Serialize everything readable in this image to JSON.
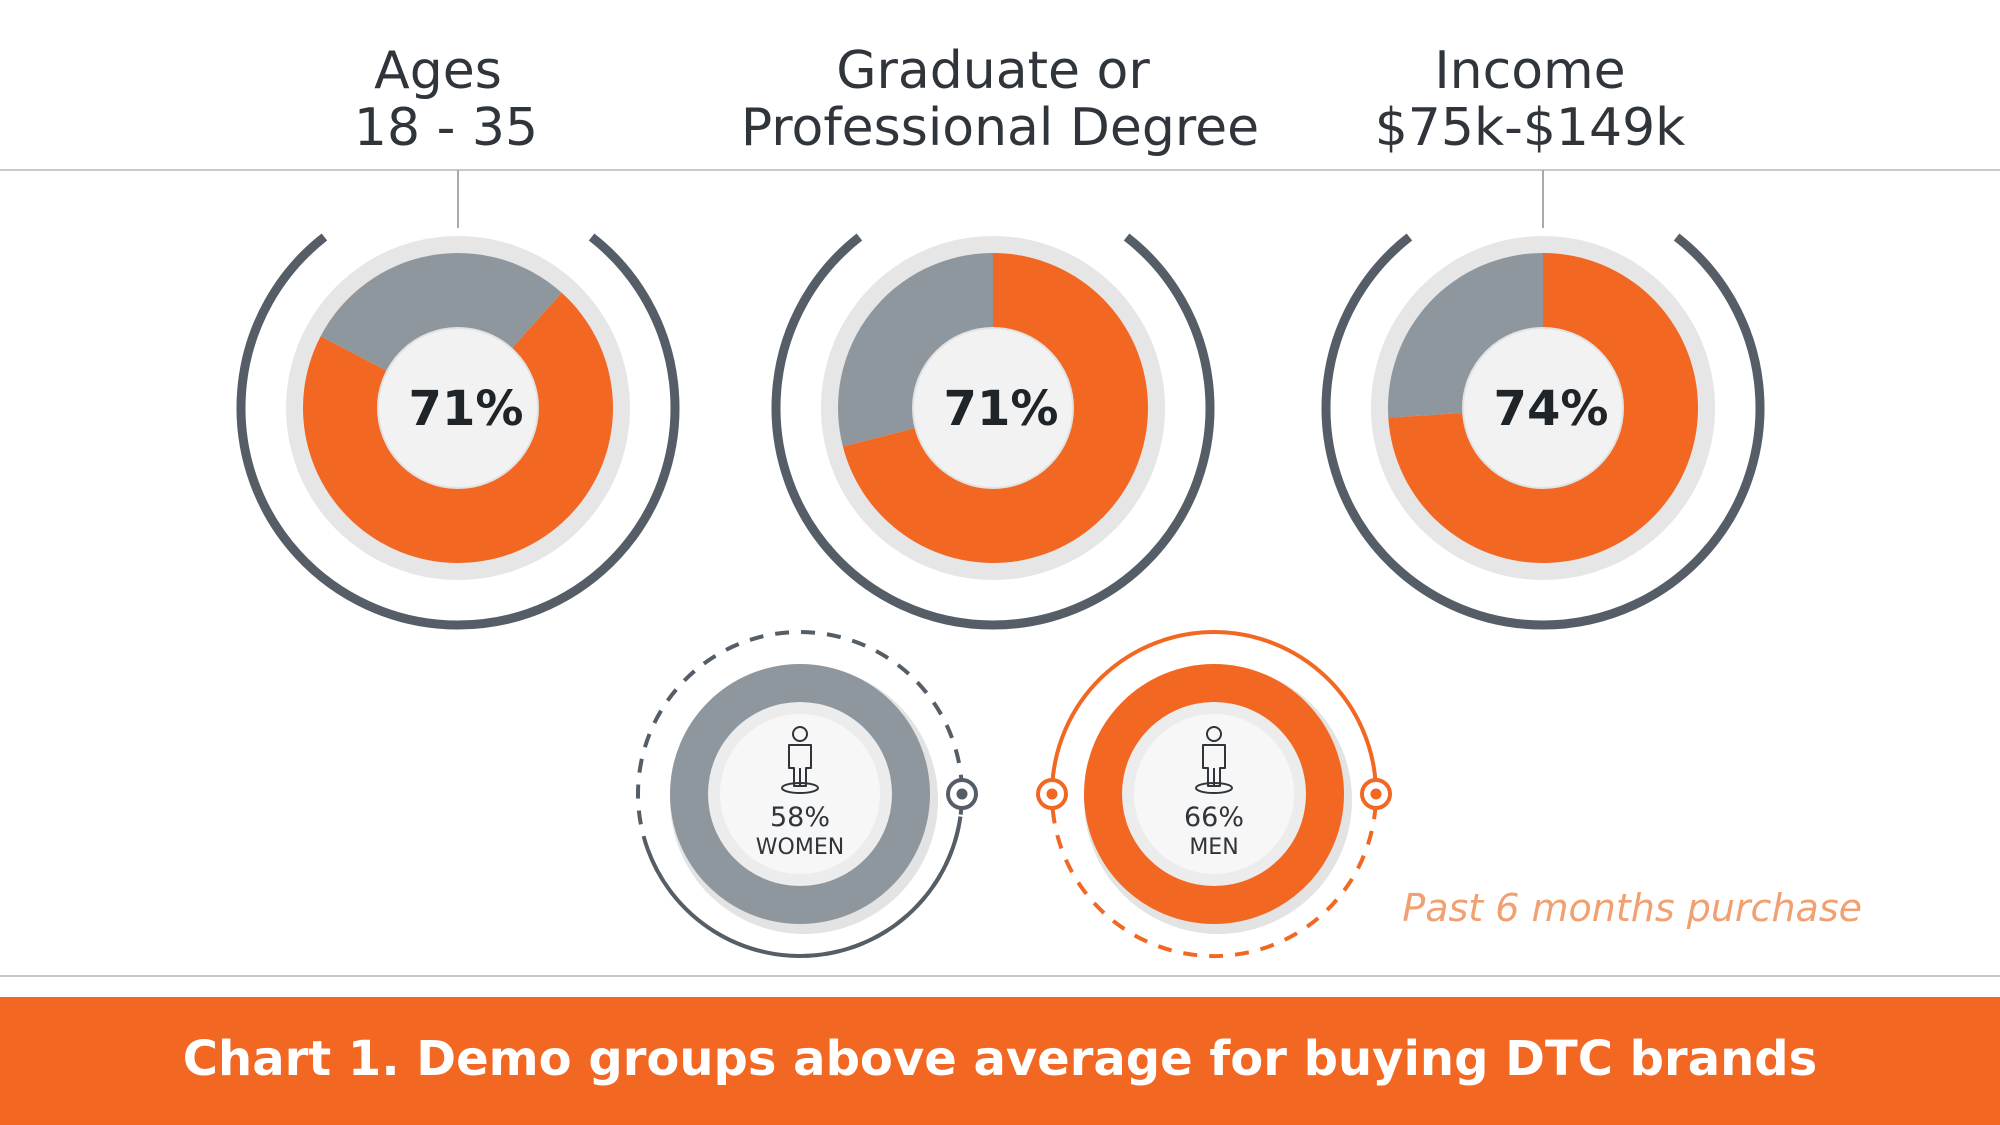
{
  "colors": {
    "accent": "#f26722",
    "gray_fill": "#8f979e",
    "dark_arc": "#555d66",
    "ring_light": "#e6e6e6",
    "text_dark": "#2f353b",
    "note": "#f0a071",
    "banner_bg": "#f26722",
    "banner_text": "#ffffff"
  },
  "chart_data": [
    {
      "type": "pie",
      "title_lines": [
        "Ages",
        "18 - 35"
      ],
      "value_label": "71%",
      "values": [
        71,
        29
      ]
    },
    {
      "type": "pie",
      "title_lines": [
        "Graduate or",
        "Professional Degree"
      ],
      "value_label": "71%",
      "values": [
        71,
        29
      ]
    },
    {
      "type": "pie",
      "title_lines": [
        "Income",
        "$75k-$149k"
      ],
      "value_label": "74%",
      "values": [
        74,
        26
      ]
    }
  ],
  "gender": [
    {
      "value": 58,
      "value_label": "58%",
      "label": "WOMEN",
      "color": "gray",
      "icon": "person-icon"
    },
    {
      "value": 66,
      "value_label": "66%",
      "label": "MEN",
      "color": "orange",
      "icon": "person-icon"
    }
  ],
  "note": "Past 6 months purchase",
  "banner": "Chart 1. Demo groups above average for buying DTC brands"
}
